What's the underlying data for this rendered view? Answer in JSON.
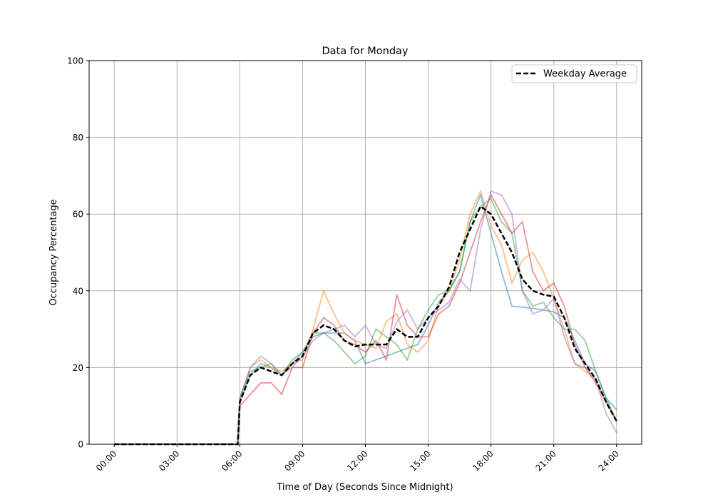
{
  "chart_data": {
    "type": "line",
    "title": "Data for Monday",
    "xlabel": "Time of Day (Seconds Since Midnight)",
    "ylabel": "Occupancy Percentage",
    "xlim_hours": [
      -1.2,
      25.2
    ],
    "ylim": [
      0,
      100
    ],
    "grid": true,
    "legend_placement": "top-right",
    "x_ticks": [
      "00:00",
      "03:00",
      "06:00",
      "09:00",
      "12:00",
      "15:00",
      "18:00",
      "21:00",
      "24:00"
    ],
    "y_ticks": [
      0,
      20,
      40,
      60,
      80,
      100
    ],
    "x_hours": [
      0,
      5.9,
      6,
      6.5,
      7,
      7.5,
      8,
      8.5,
      9,
      9.5,
      10,
      10.5,
      11,
      11.5,
      12,
      12.5,
      13,
      13.5,
      14,
      14.5,
      15,
      15.5,
      16,
      16.5,
      17,
      17.5,
      18,
      18.5,
      19,
      19.5,
      20,
      20.5,
      21,
      21.5,
      22,
      22.5,
      23,
      23.5,
      24
    ],
    "series": [
      {
        "color": "#1f77b4",
        "values": [
          0,
          0,
          11,
          18,
          21,
          20,
          18,
          21,
          24,
          28,
          29,
          29,
          29,
          27,
          21,
          22,
          23,
          24,
          25,
          26,
          31,
          37,
          40,
          45,
          58,
          65,
          55,
          45,
          36,
          35.7,
          35.4,
          35,
          34.5,
          33,
          27,
          21,
          19,
          12,
          9
        ]
      },
      {
        "color": "#ff7f0e",
        "values": [
          0,
          0,
          12,
          20,
          22,
          20,
          19,
          21,
          22,
          30,
          40,
          34,
          29,
          27,
          26,
          25,
          32,
          34,
          26,
          24,
          27,
          36,
          40,
          48,
          60,
          66,
          57,
          52,
          42,
          48,
          50,
          45,
          38,
          30,
          21,
          19,
          17,
          11,
          6
        ]
      },
      {
        "color": "#2ca02c",
        "values": [
          0,
          0,
          12,
          19,
          20,
          21,
          18,
          22,
          24,
          29,
          29,
          27,
          24,
          21,
          23,
          30,
          28,
          26,
          22,
          30,
          35,
          39,
          40,
          45,
          58,
          62,
          64,
          58,
          55,
          40,
          36,
          37,
          33,
          30,
          30,
          27,
          19,
          12,
          6
        ]
      },
      {
        "color": "#d62728",
        "values": [
          0,
          0,
          10,
          13,
          16,
          16,
          13,
          20,
          20,
          29,
          33,
          31,
          27,
          26,
          24,
          27,
          22,
          39,
          31,
          28,
          28,
          34,
          36,
          42,
          50,
          58,
          65,
          60,
          55,
          58,
          45,
          40,
          42,
          36,
          26,
          20,
          16,
          11,
          6
        ]
      },
      {
        "color": "#9467bd",
        "values": [
          0,
          0,
          12,
          20,
          23,
          21,
          18,
          20,
          23,
          27,
          29,
          30,
          31,
          28,
          31,
          26,
          25,
          32,
          35,
          30,
          33,
          35,
          37,
          43,
          40,
          56,
          66,
          65,
          60,
          40,
          34,
          35,
          38,
          28,
          21,
          20,
          17,
          8,
          3
        ]
      },
      {
        "name": "Weekday Average",
        "color": "#000000",
        "dashed": true,
        "values": [
          0,
          0,
          11,
          18,
          20,
          19,
          18,
          21,
          23,
          29,
          31,
          30,
          27,
          25.5,
          26,
          26,
          26,
          30,
          28,
          28,
          33,
          36,
          41,
          50,
          56,
          62,
          60,
          55,
          50,
          43,
          40,
          39,
          38.5,
          33,
          25,
          21,
          17,
          11,
          6
        ]
      }
    ]
  }
}
